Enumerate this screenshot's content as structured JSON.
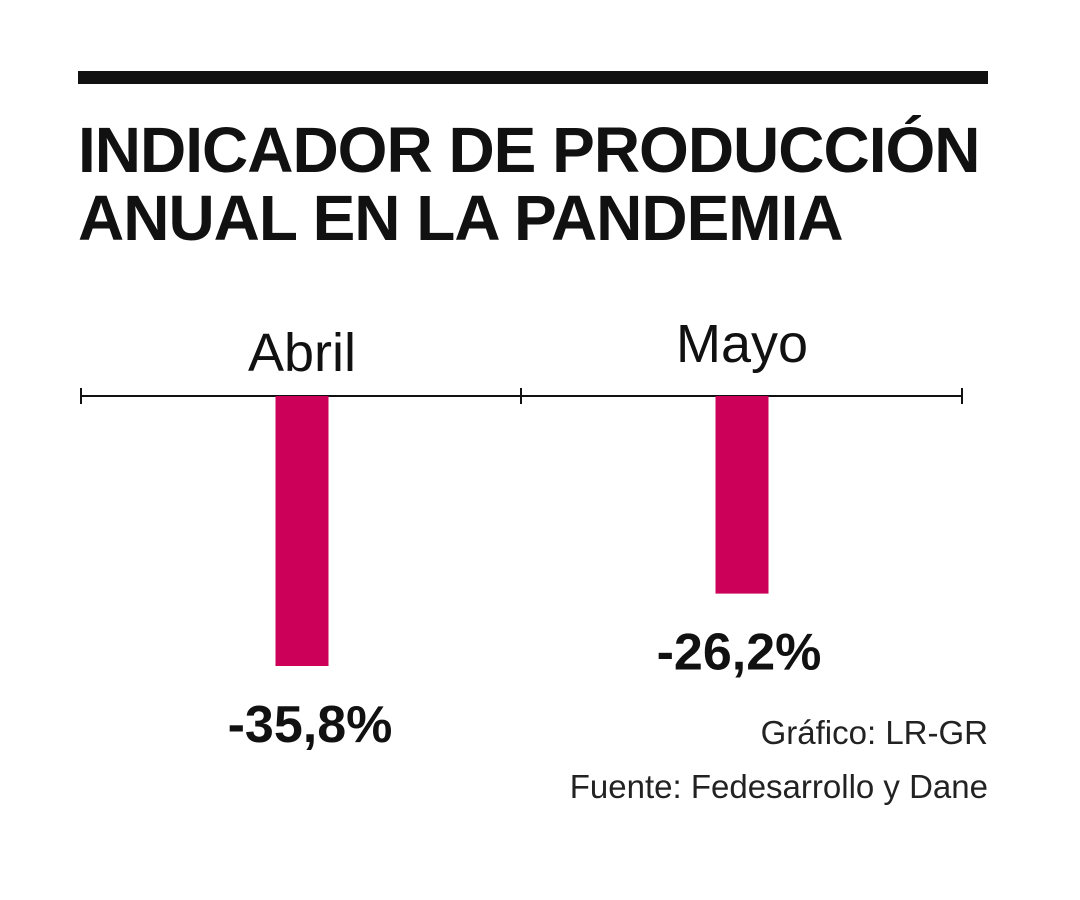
{
  "title": "INDICADOR DE PRODUCCIÓN ANUAL EN LA PANDEMIA",
  "chart_data": {
    "type": "bar",
    "title": "INDICADOR DE PRODUCCIÓN ANUAL EN LA PANDEMIA",
    "categories": [
      "Abril",
      "Mayo"
    ],
    "values": [
      -35.8,
      -26.2
    ],
    "value_labels": [
      "-35,8%",
      "-26,2%"
    ],
    "xlabel": "",
    "ylabel": "",
    "ylim": [
      -40,
      0
    ],
    "grid": false,
    "legend": "none",
    "bar_color": "#cc0058"
  },
  "credits": {
    "graphic": "Gráfico: LR-GR",
    "source": "Fuente: Fedesarrollo y Dane"
  }
}
